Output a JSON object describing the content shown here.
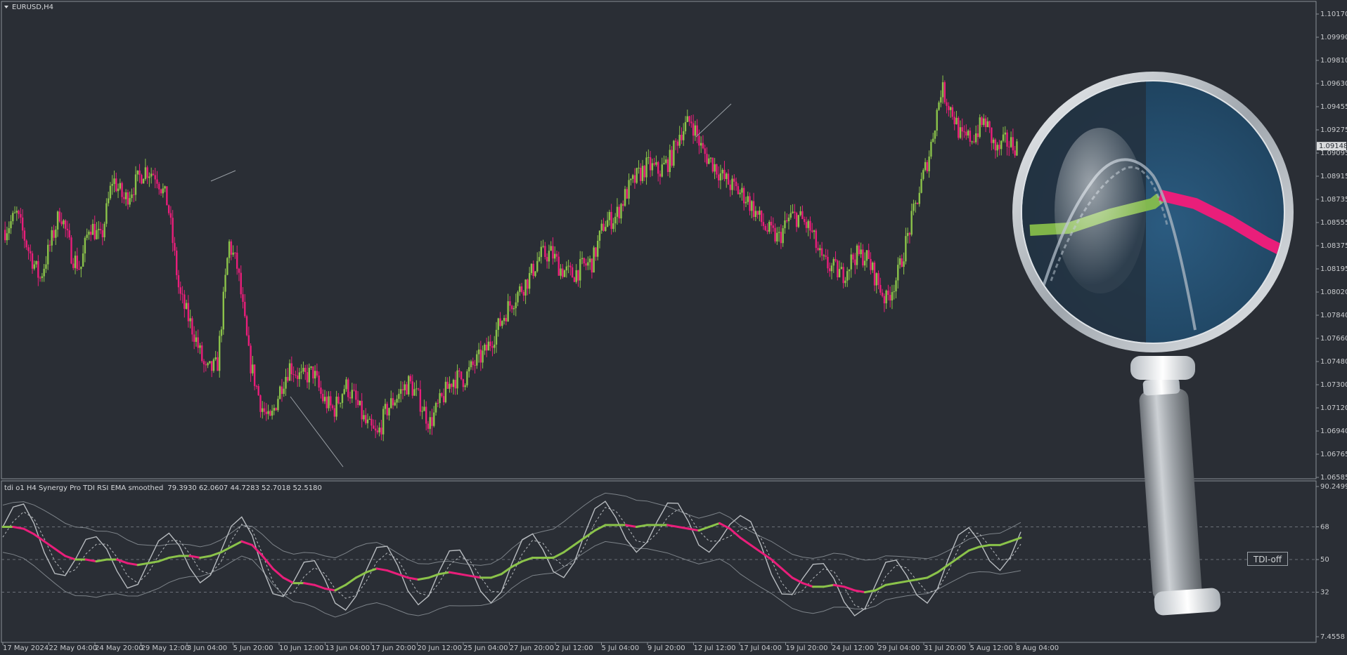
{
  "window": {
    "symbol_title": "EURUSD,H4"
  },
  "indicator": {
    "title": "tdi o1 H4 Synergy Pro TDI RSI EMA smoothed",
    "values": "79.3930 62.0607 44.7283 52.7018 52.5180",
    "button_label": "TDI-off"
  },
  "price_axis": {
    "ticks": [
      "1.10170",
      "1.09990",
      "1.09810",
      "1.09630",
      "1.09455",
      "1.09275",
      "1.09095",
      "1.08915",
      "1.08735",
      "1.08555",
      "1.08375",
      "1.08195",
      "1.08020",
      "1.07840",
      "1.07660",
      "1.07480",
      "1.07300",
      "1.07120",
      "1.06940",
      "1.06765",
      "1.06585"
    ],
    "current_price": "1.09148"
  },
  "indicator_axis": {
    "ticks": [
      "90.2499",
      "68",
      "50",
      "32",
      "7.4558"
    ]
  },
  "time_axis": {
    "labels": [
      "17 May 2024",
      "22 May 04:00",
      "24 May 20:00",
      "29 May 12:00",
      "3 Jun 04:00",
      "5 Jun 20:00",
      "10 Jun 12:00",
      "13 Jun 04:00",
      "17 Jun 20:00",
      "20 Jun 12:00",
      "25 Jun 04:00",
      "27 Jun 20:00",
      "2 Jul 12:00",
      "5 Jul 04:00",
      "9 Jul 20:00",
      "12 Jul 12:00",
      "17 Jul 04:00",
      "19 Jul 20:00",
      "24 Jul 12:00",
      "29 Jul 04:00",
      "31 Jul 20:00",
      "5 Aug 12:00",
      "8 Aug 04:00"
    ]
  },
  "colors": {
    "bull": "#8bc34a",
    "bear": "#e91e7a",
    "background": "#2a2e35",
    "grid": "#6b7078"
  },
  "icons": {
    "dropdown": "triangle-down-icon",
    "overlay": "magnifying-glass-icon"
  },
  "chart_data": [
    {
      "type": "candlestick",
      "title": "EURUSD,H4",
      "ylim": [
        1.06585,
        1.1017
      ],
      "path_close": [
        [
          0,
          1.085
        ],
        [
          0.04,
          1.0862
        ],
        [
          0.08,
          1.0835
        ],
        [
          0.12,
          1.0812
        ],
        [
          0.16,
          1.0842
        ],
        [
          0.19,
          1.0865
        ],
        [
          0.23,
          1.083
        ],
        [
          0.26,
          1.082
        ],
        [
          0.29,
          1.0855
        ],
        [
          0.33,
          1.0842
        ],
        [
          0.37,
          1.089
        ],
        [
          0.41,
          1.0873
        ],
        [
          0.44,
          1.0883
        ],
        [
          0.48,
          1.0897
        ],
        [
          0.52,
          1.0893
        ],
        [
          0.56,
          1.087
        ],
        [
          0.6,
          1.08
        ],
        [
          0.65,
          1.077
        ],
        [
          0.69,
          1.074
        ],
        [
          0.73,
          1.0745
        ],
        [
          0.77,
          1.084
        ],
        [
          0.8,
          1.082
        ],
        [
          0.84,
          1.075
        ],
        [
          0.88,
          1.0715
        ],
        [
          0.91,
          1.07
        ],
        [
          0.95,
          1.073
        ],
        [
          0.98,
          1.0745
        ],
        [
          1.02,
          1.0735
        ],
        [
          1.06,
          1.074
        ],
        [
          1.09,
          1.072
        ],
        [
          1.13,
          1.071
        ],
        [
          1.17,
          1.073
        ],
        [
          1.2,
          1.072
        ],
        [
          1.24,
          1.07
        ],
        [
          1.28,
          1.069
        ],
        [
          1.31,
          1.071
        ],
        [
          1.35,
          1.0722
        ],
        [
          1.39,
          1.0732
        ],
        [
          1.43,
          1.0716
        ],
        [
          1.46,
          1.07
        ],
        [
          1.5,
          1.0718
        ],
        [
          1.54,
          1.0735
        ],
        [
          1.58,
          1.0735
        ],
        [
          1.61,
          1.0745
        ],
        [
          1.65,
          1.0755
        ],
        [
          1.69,
          1.0772
        ],
        [
          1.73,
          1.079
        ],
        [
          1.76,
          1.08
        ],
        [
          1.8,
          1.0812
        ],
        [
          1.84,
          1.083
        ],
        [
          1.88,
          1.0832
        ],
        [
          1.91,
          1.082
        ],
        [
          1.95,
          1.0815
        ],
        [
          1.99,
          1.0822
        ],
        [
          2.02,
          1.0825
        ],
        [
          2.06,
          1.0855
        ],
        [
          2.1,
          1.086
        ],
        [
          2.14,
          1.088
        ],
        [
          2.17,
          1.089
        ],
        [
          2.21,
          1.09
        ],
        [
          2.25,
          1.0895
        ],
        [
          2.29,
          1.0905
        ],
        [
          2.32,
          1.0925
        ],
        [
          2.36,
          1.0935
        ],
        [
          2.4,
          1.091
        ],
        [
          2.44,
          1.09
        ],
        [
          2.47,
          1.089
        ],
        [
          2.51,
          1.0882
        ],
        [
          2.55,
          1.0875
        ],
        [
          2.59,
          1.086
        ],
        [
          2.62,
          1.085
        ],
        [
          2.66,
          1.0843
        ],
        [
          2.7,
          1.086
        ],
        [
          2.73,
          1.086
        ],
        [
          2.77,
          1.085
        ],
        [
          2.81,
          1.0825
        ],
        [
          2.85,
          1.082
        ],
        [
          2.88,
          1.0815
        ],
        [
          2.92,
          1.083
        ],
        [
          2.96,
          1.083
        ],
        [
          3.0,
          1.081
        ],
        [
          3.03,
          1.0795
        ],
        [
          3.07,
          1.0815
        ],
        [
          3.11,
          1.085
        ],
        [
          3.15,
          1.0885
        ],
        [
          3.18,
          1.091
        ],
        [
          3.22,
          1.096
        ],
        [
          3.26,
          1.094
        ],
        [
          3.29,
          1.092
        ],
        [
          3.33,
          1.0922
        ],
        [
          3.37,
          1.0935
        ],
        [
          3.41,
          1.091
        ],
        [
          3.44,
          1.0918
        ],
        [
          3.48,
          1.0915
        ]
      ]
    },
    {
      "type": "line",
      "title": "tdi o1 H4 Synergy Pro TDI RSI EMA smoothed",
      "ylim": [
        7.4558,
        90.2499
      ],
      "levels": [
        68,
        50,
        32
      ],
      "series": [
        {
          "name": "signal",
          "values": [
            68,
            68,
            67,
            64,
            60,
            56,
            52,
            50,
            50,
            49,
            50,
            50,
            48,
            47,
            48,
            49,
            51,
            52,
            52,
            51,
            52,
            54,
            57,
            60,
            58,
            52,
            45,
            40,
            37,
            37,
            36,
            34,
            33,
            36,
            40,
            43,
            45,
            44,
            42,
            40,
            39,
            40,
            42,
            43,
            42,
            41,
            40,
            40,
            42,
            46,
            49,
            51,
            51,
            51,
            54,
            58,
            62,
            66,
            69,
            69,
            69,
            68,
            69,
            69,
            69,
            68,
            67,
            66,
            68,
            70,
            67,
            62,
            58,
            54,
            50,
            45,
            40,
            37,
            35,
            35,
            36,
            35,
            33,
            32,
            33,
            36,
            37,
            38,
            39,
            40,
            43,
            47,
            51,
            55,
            57,
            58,
            58,
            60,
            62
          ]
        }
      ]
    }
  ]
}
